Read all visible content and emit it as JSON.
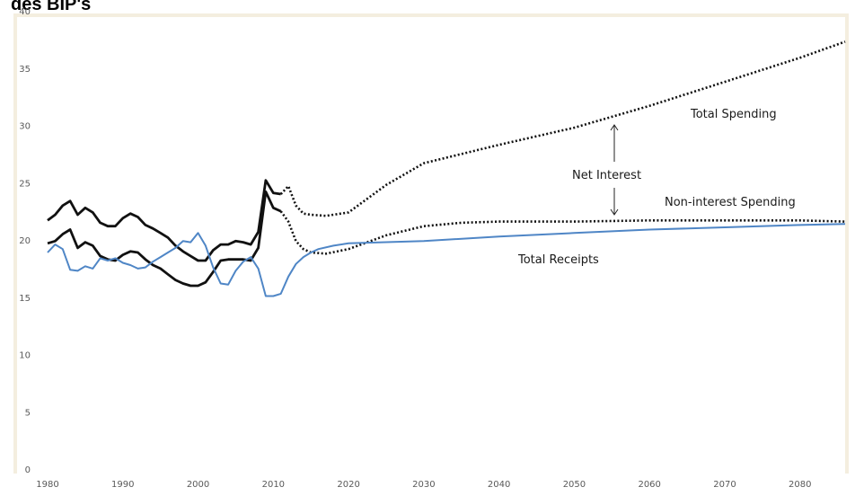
{
  "chart_data": {
    "type": "line",
    "title": "des BIP's",
    "xlabel": "",
    "ylabel": "",
    "xlim": [
      1980,
      2086
    ],
    "ylim": [
      0,
      40
    ],
    "grid": false,
    "xticks": [
      1980,
      1990,
      2000,
      2010,
      2020,
      2030,
      2040,
      2050,
      2060,
      2070,
      2080
    ],
    "yticks": [
      0,
      5,
      10,
      15,
      20,
      25,
      30,
      35,
      40
    ],
    "annotations": [
      {
        "id": "total-spending",
        "text": "Total Spending"
      },
      {
        "id": "net-interest",
        "text": "Net Interest"
      },
      {
        "id": "non-interest-spending",
        "text": "Non-interest Spending"
      },
      {
        "id": "total-receipts",
        "text": "Total Receipts"
      }
    ],
    "series": [
      {
        "id": "total-spending-actual",
        "color": "#111111",
        "style": "solid",
        "x": [
          1980,
          1981,
          1982,
          1983,
          1984,
          1985,
          1986,
          1987,
          1988,
          1989,
          1990,
          1991,
          1992,
          1993,
          1994,
          1995,
          1996,
          1997,
          1998,
          1999,
          2000,
          2001,
          2002,
          2003,
          2004,
          2005,
          2006,
          2007,
          2008,
          2009,
          2010,
          2011
        ],
        "y": [
          21.7,
          22.2,
          23.0,
          23.4,
          22.2,
          22.8,
          22.4,
          21.5,
          21.2,
          21.2,
          21.9,
          22.3,
          22.0,
          21.3,
          21.0,
          20.6,
          20.2,
          19.5,
          19.0,
          18.6,
          18.2,
          18.2,
          19.1,
          19.6,
          19.6,
          19.9,
          19.8,
          19.6,
          20.7,
          25.2,
          24.1,
          24.0
        ]
      },
      {
        "id": "non-interest-spending-actual",
        "color": "#111111",
        "style": "solid",
        "x": [
          1980,
          1981,
          1982,
          1983,
          1984,
          1985,
          1986,
          1987,
          1988,
          1989,
          1990,
          1991,
          1992,
          1993,
          1994,
          1995,
          1996,
          1997,
          1998,
          1999,
          2000,
          2001,
          2002,
          2003,
          2004,
          2005,
          2006,
          2007,
          2008,
          2009,
          2010,
          2011
        ],
        "y": [
          19.7,
          19.9,
          20.5,
          20.9,
          19.3,
          19.8,
          19.5,
          18.6,
          18.3,
          18.2,
          18.7,
          19.0,
          18.9,
          18.3,
          17.8,
          17.5,
          17.0,
          16.5,
          16.2,
          16.0,
          16.0,
          16.3,
          17.2,
          18.2,
          18.3,
          18.3,
          18.3,
          18.2,
          19.3,
          24.2,
          22.8,
          22.5
        ]
      },
      {
        "id": "total-spending-projected",
        "color": "#111111",
        "style": "dotted",
        "x": [
          2011,
          2012,
          2013,
          2014,
          2015,
          2017,
          2020,
          2025,
          2030,
          2040,
          2050,
          2060,
          2070,
          2080,
          2086
        ],
        "y": [
          24.0,
          24.7,
          23.0,
          22.3,
          22.2,
          22.1,
          22.4,
          24.8,
          26.7,
          28.3,
          29.8,
          31.7,
          33.8,
          35.9,
          37.3
        ]
      },
      {
        "id": "non-interest-spending-projected",
        "color": "#111111",
        "style": "dotted",
        "x": [
          2011,
          2012,
          2013,
          2014,
          2015,
          2017,
          2020,
          2025,
          2030,
          2035,
          2040,
          2050,
          2060,
          2070,
          2080,
          2086
        ],
        "y": [
          22.5,
          21.6,
          19.9,
          19.2,
          18.9,
          18.8,
          19.2,
          20.4,
          21.2,
          21.5,
          21.6,
          21.6,
          21.7,
          21.7,
          21.7,
          21.6
        ]
      },
      {
        "id": "total-receipts",
        "color": "#4f86c6",
        "style": "solid",
        "x": [
          1980,
          1981,
          1982,
          1983,
          1984,
          1985,
          1986,
          1987,
          1988,
          1989,
          1990,
          1991,
          1992,
          1993,
          1994,
          1995,
          1996,
          1997,
          1998,
          1999,
          2000,
          2001,
          2002,
          2003,
          2004,
          2005,
          2006,
          2007,
          2008,
          2009,
          2010,
          2011,
          2012,
          2013,
          2014,
          2015,
          2016,
          2018,
          2020,
          2030,
          2040,
          2050,
          2060,
          2070,
          2080,
          2086
        ],
        "y": [
          18.9,
          19.6,
          19.2,
          17.4,
          17.3,
          17.7,
          17.5,
          18.4,
          18.2,
          18.4,
          18.0,
          17.8,
          17.5,
          17.6,
          18.1,
          18.5,
          18.9,
          19.3,
          19.9,
          19.8,
          20.6,
          19.5,
          17.6,
          16.2,
          16.1,
          17.3,
          18.1,
          18.5,
          17.5,
          15.1,
          15.1,
          15.3,
          16.8,
          17.9,
          18.5,
          18.9,
          19.2,
          19.5,
          19.7,
          19.9,
          20.3,
          20.6,
          20.9,
          21.1,
          21.3,
          21.4
        ]
      }
    ]
  }
}
